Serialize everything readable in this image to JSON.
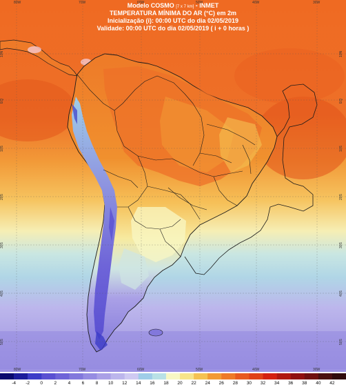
{
  "header": {
    "line1_main": "Modelo COSMO",
    "line1_res": "[7 x 7 km]",
    "line1_org": "- INMET",
    "line2": "TEMPERATURA MÍNIMA DO AR (°C) em 2m",
    "line3": "Inicialização (i): 00:00 UTC do dia 02/05/2019",
    "line4": "Validade: 00:00 UTC do dia 02/05/2019 ( i + 0 horas )"
  },
  "grid_labels": {
    "top": [
      "80W",
      "70W",
      "60W",
      "50W",
      "40W",
      "30W"
    ],
    "bottom": [
      "80W",
      "70W",
      "60W",
      "50W",
      "40W",
      "30W"
    ],
    "left": [
      "10N",
      "EQ",
      "10S",
      "20S",
      "30S",
      "40S",
      "50S"
    ],
    "right": [
      "10N",
      "EQ",
      "10S",
      "20S",
      "30S",
      "40S",
      "50S"
    ]
  },
  "colorbar": {
    "ticks": [
      "-4",
      "-2",
      "0",
      "2",
      "4",
      "6",
      "8",
      "10",
      "12",
      "14",
      "16",
      "18",
      "20",
      "22",
      "24",
      "26",
      "28",
      "30",
      "32",
      "34",
      "36",
      "38",
      "40",
      "42"
    ],
    "colors": [
      "#0a0a6e",
      "#1c1c9c",
      "#3c3cc8",
      "#5a50d2",
      "#6e64d8",
      "#8278dc",
      "#968ce2",
      "#aaa0e6",
      "#bcb6ec",
      "#cfcaf2",
      "#9fcde8",
      "#b9e1e6",
      "#f8f7c4",
      "#f7e48a",
      "#f5c252",
      "#f29a34",
      "#ee7a28",
      "#e85a20",
      "#e04018",
      "#d42010",
      "#b01810",
      "#901010",
      "#701010",
      "#4a1010",
      "#300c0c"
    ]
  },
  "colors": {
    "ocean_warm": "#ef6a22",
    "ocean_hot": "#e55218",
    "ocean_mid": "#f5a040",
    "ocean_light": "#f8d070",
    "ocean_pale": "#f6f2b8",
    "ocean_blue1": "#b6dde6",
    "ocean_lav": "#bcb6ec",
    "ocean_purple": "#968ce2",
    "border": "#1a1a1a"
  }
}
